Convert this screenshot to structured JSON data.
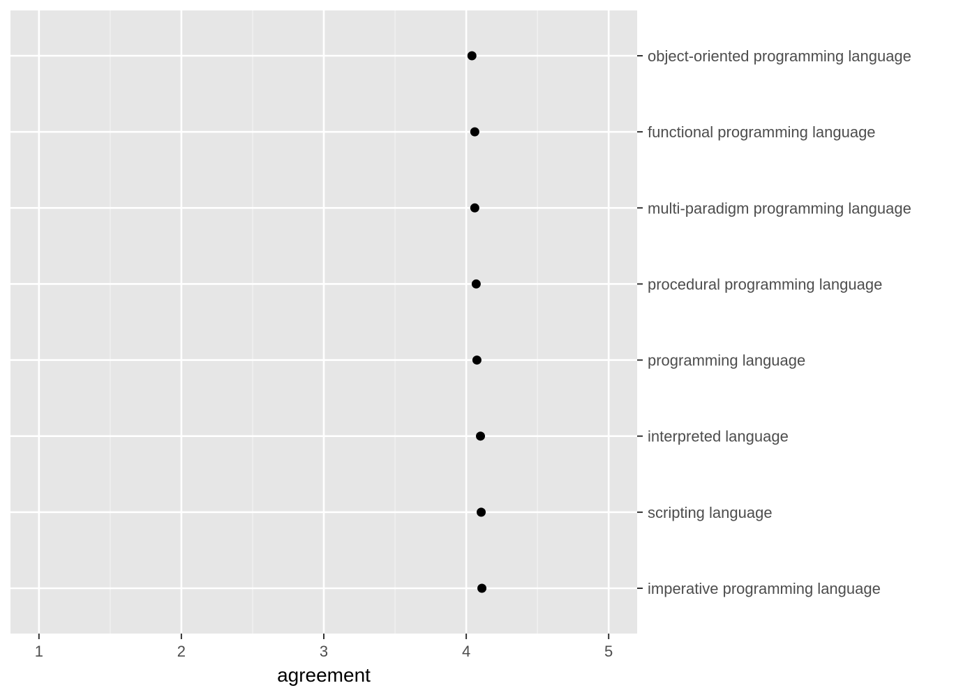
{
  "chart_data": {
    "type": "scatter",
    "title": "",
    "xlabel": "agreement",
    "ylabel": "",
    "xlim": [
      0.8,
      5.2
    ],
    "x_ticks": [
      1,
      2,
      3,
      4,
      5
    ],
    "x_tick_labels": [
      "1",
      "2",
      "3",
      "4",
      "5"
    ],
    "y_axis_position": "right",
    "grid": true,
    "legend": "none",
    "colors": {
      "panel": "#e6e6e6",
      "grid_major": "#ffffff",
      "grid_minor": "#f2f2f2",
      "point": "#000000",
      "tick_mark": "#333333",
      "tick_label": "#4d4d4d"
    },
    "points": [
      {
        "label": "object-oriented programming language",
        "value": 4.04
      },
      {
        "label": "functional programming language",
        "value": 4.06
      },
      {
        "label": "multi-paradigm programming language",
        "value": 4.06
      },
      {
        "label": "procedural programming language",
        "value": 4.07
      },
      {
        "label": "programming language",
        "value": 4.075
      },
      {
        "label": "interpreted language",
        "value": 4.1
      },
      {
        "label": "scripting language",
        "value": 4.105
      },
      {
        "label": "imperative programming language",
        "value": 4.11
      }
    ]
  }
}
